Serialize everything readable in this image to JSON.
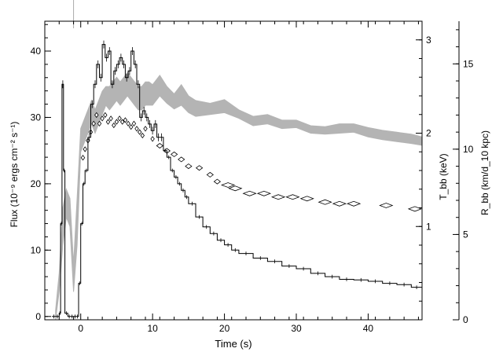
{
  "chart_data": {
    "type": "line",
    "xlabel": "Time (s)",
    "ylabel_left": "Flux (10⁻⁹ ergs cm⁻² s⁻¹)",
    "ylabel_right_inner": "T_bb (keV)",
    "ylabel_right_outer": "R_bb (km/d_10 kpc)",
    "xlim": [
      -5,
      47.5
    ],
    "ylim_flux": [
      -0.5,
      44.5
    ],
    "ylim_kT": [
      0,
      3.2
    ],
    "ylim_R": [
      0,
      17.5
    ],
    "x_ticks": [
      "0",
      "10",
      "20",
      "30",
      "40"
    ],
    "x_tick_values": [
      0,
      10,
      20,
      30,
      40
    ],
    "flux_ticks": [
      "0",
      "10",
      "20",
      "30",
      "40"
    ],
    "flux_tick_values": [
      0,
      10,
      20,
      30,
      40
    ],
    "kT_ticks": [
      "1",
      "2",
      "3"
    ],
    "kT_tick_values": [
      1,
      2,
      3
    ],
    "R_ticks": [
      "0",
      "5",
      "10",
      "15"
    ],
    "R_tick_values": [
      0,
      5,
      10,
      15
    ],
    "grid": false,
    "reference_line_x": -1,
    "flux_series": {
      "x": [
        -4,
        -3.5,
        -3.0,
        -2.8,
        -2.6,
        -2.4,
        -2.2,
        -1.8,
        -1.4,
        -1.0,
        -0.6,
        -0.3,
        0.0,
        0.3,
        0.6,
        1.0,
        1.4,
        1.8,
        2.2,
        2.6,
        3.0,
        3.4,
        3.8,
        4.2,
        4.6,
        5.0,
        5.4,
        5.8,
        6.2,
        6.6,
        7.0,
        7.4,
        7.8,
        8.2,
        8.6,
        9.0,
        9.4,
        9.8,
        10.2,
        10.6,
        11.0,
        11.5,
        12.0,
        12.5,
        13.0,
        13.5,
        14.0,
        14.5,
        15.0,
        16.0,
        17.0,
        18.0,
        19.0,
        20.0,
        21.0,
        22.0,
        24.0,
        26.0,
        28.0,
        30.0,
        32.0,
        34.0,
        36.0,
        38.0,
        40.0,
        42.0,
        44.0,
        46.0,
        47.5
      ],
      "y": [
        0,
        0,
        0.5,
        14,
        35,
        22,
        0.5,
        0,
        0,
        0,
        0,
        5,
        14,
        20,
        22,
        27,
        32,
        35,
        38,
        36,
        41,
        39,
        40,
        35,
        37,
        38,
        39,
        38,
        36,
        37,
        40,
        38,
        35,
        30,
        31,
        30,
        29,
        28,
        29,
        27,
        27,
        25,
        24,
        22,
        21,
        20,
        19,
        18,
        17,
        15,
        13.5,
        12.5,
        11.5,
        10.8,
        10.0,
        9.5,
        8.8,
        8.3,
        7.6,
        7.2,
        6.5,
        6.0,
        5.6,
        5.5,
        5.3,
        5.0,
        4.8,
        4.4,
        4.4
      ]
    },
    "kT_band": {
      "x": [
        -3.5,
        -3.0,
        -2.5,
        -2.0,
        -1.5,
        -1.0,
        -0.5,
        0.0,
        0.5,
        1.0,
        1.5,
        2.0,
        2.5,
        3.0,
        3.5,
        4.0,
        4.5,
        5.0,
        5.5,
        6.0,
        6.5,
        7.0,
        7.5,
        8.0,
        8.5,
        9.0,
        9.5,
        10.0,
        11.0,
        12.0,
        13.0,
        14.0,
        15.0,
        16.0,
        18.0,
        20.0,
        22.0,
        24.0,
        26.0,
        28.0,
        30.0,
        32.0,
        34.0,
        36.0,
        38.0,
        40.0,
        42.0,
        44.0,
        46.0,
        47.5
      ],
      "lo": [
        0.0,
        0.3,
        0.8,
        1.1,
        1.0,
        0.3,
        0.8,
        1.8,
        1.9,
        2.0,
        2.1,
        2.0,
        2.1,
        2.2,
        2.3,
        2.25,
        2.3,
        2.35,
        2.3,
        2.35,
        2.4,
        2.35,
        2.3,
        2.25,
        2.25,
        2.3,
        2.3,
        2.3,
        2.4,
        2.32,
        2.26,
        2.3,
        2.22,
        2.18,
        2.2,
        2.22,
        2.16,
        2.08,
        2.1,
        2.05,
        2.06,
        2.0,
        1.99,
        2.0,
        2.01,
        1.96,
        1.93,
        1.91,
        1.89,
        1.87
      ],
      "hi": [
        0.1,
        0.5,
        1.2,
        1.4,
        1.3,
        0.6,
        1.3,
        2.05,
        2.15,
        2.25,
        2.35,
        2.25,
        2.35,
        2.45,
        2.5,
        2.5,
        2.55,
        2.6,
        2.55,
        2.6,
        2.65,
        2.6,
        2.55,
        2.5,
        2.5,
        2.55,
        2.55,
        2.52,
        2.62,
        2.5,
        2.42,
        2.52,
        2.4,
        2.35,
        2.32,
        2.36,
        2.25,
        2.18,
        2.2,
        2.14,
        2.14,
        2.08,
        2.07,
        2.1,
        2.1,
        2.06,
        2.03,
        2.01,
        1.99,
        1.96
      ]
    },
    "R_points": {
      "x": [
        0.3,
        0.6,
        1.0,
        1.4,
        1.8,
        2.2,
        2.6,
        3.0,
        3.4,
        3.8,
        4.2,
        4.6,
        5.0,
        5.4,
        5.8,
        6.2,
        6.6,
        7.0,
        7.4,
        7.8,
        8.2,
        8.6,
        9.0,
        10.0,
        11.0,
        12.0,
        13.0,
        14.0,
        15.0,
        16.5,
        18.0,
        19.0,
        20.5,
        21.5,
        23.5,
        25.5,
        27.5,
        29.5,
        31.5,
        34.0,
        36.0,
        38.0,
        42.5,
        46.5
      ],
      "y": [
        9.5,
        10.0,
        10.5,
        11.0,
        11.5,
        12.0,
        11.5,
        11.8,
        12.0,
        11.6,
        11.8,
        11.4,
        11.6,
        11.8,
        11.6,
        11.7,
        11.5,
        11.3,
        11.5,
        11.2,
        11.0,
        10.8,
        11.2,
        10.6,
        10.2,
        9.9,
        9.7,
        9.4,
        9.0,
        8.9,
        8.5,
        8.1,
        7.9,
        7.7,
        7.4,
        7.4,
        7.2,
        7.2,
        7.1,
        6.9,
        6.8,
        6.8,
        6.7,
        6.5
      ]
    }
  }
}
